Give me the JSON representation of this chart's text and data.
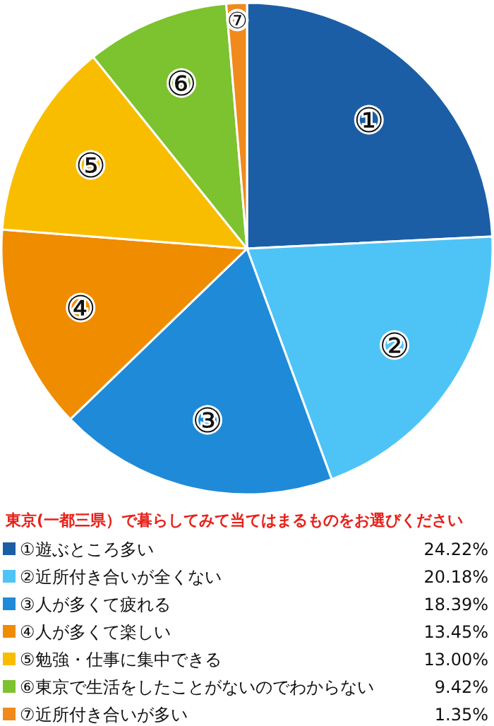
{
  "chart_data": {
    "type": "pie",
    "title": "東京(一都三県）で暮らしてみて当てはまるものをお選びください",
    "categories": [
      "①遊ぶところ多い",
      "②近所付き合いが全くない",
      "③人が多くて疲れる",
      "④人が多くて楽しい",
      "⑤勉強・仕事に集中できる",
      "⑥東京で生活をしたことがないのでわからない",
      "⑦近所付き合いが多い"
    ],
    "values": [
      24.22,
      20.18,
      18.39,
      13.45,
      13.0,
      9.42,
      1.35
    ],
    "value_labels": [
      "24.22%",
      "20.18%",
      "18.39%",
      "13.45%",
      "13.00%",
      "9.42%",
      "1.35%"
    ],
    "colors": [
      "#1b5ea6",
      "#4ec4f6",
      "#1f8ad8",
      "#ef8c00",
      "#f9bd00",
      "#7dc22f",
      "#f08a1c"
    ],
    "annotations": [
      "①",
      "②",
      "③",
      "④",
      "⑤",
      "⑥",
      "⑦"
    ],
    "legend": "bottom"
  }
}
